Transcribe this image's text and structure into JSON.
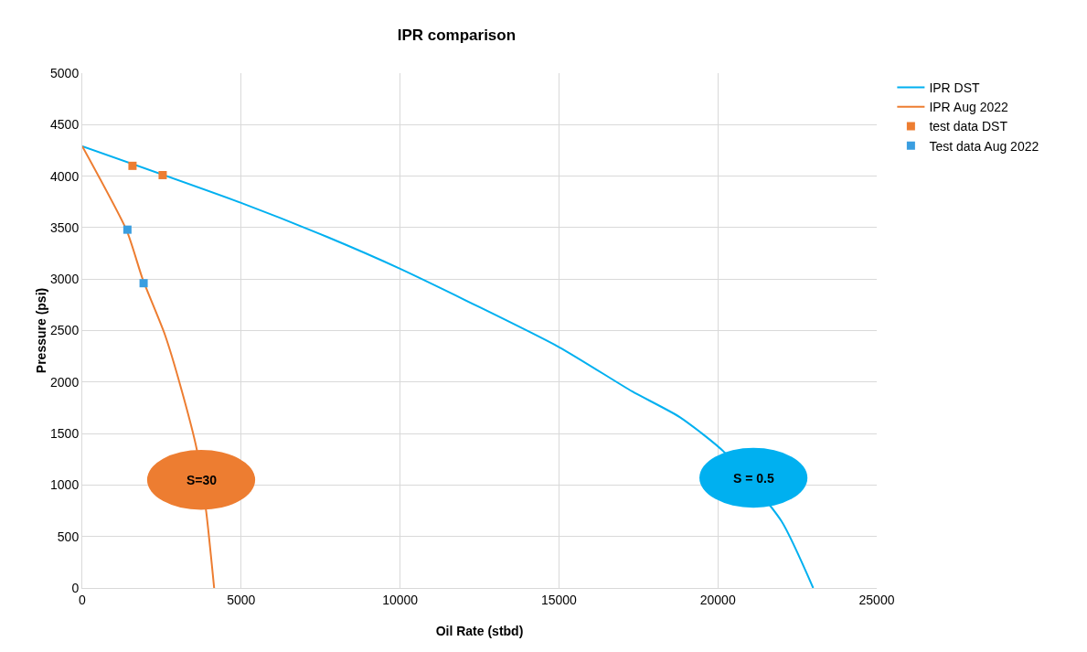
{
  "chart_data": {
    "type": "line",
    "title": "IPR comparison",
    "xlabel": "Oil Rate (stbd)",
    "ylabel": "Pressure (psi)",
    "xlim": [
      0,
      25000
    ],
    "xticks": [
      0,
      5000,
      10000,
      15000,
      20000,
      25000
    ],
    "ylim": [
      0,
      5000
    ],
    "yticks": [
      0,
      500,
      1000,
      1500,
      2000,
      2500,
      3000,
      3500,
      4000,
      4500,
      5000
    ],
    "grid": true,
    "legend": "top right",
    "series": [
      {
        "name": "IPR DST",
        "color": "#00b0f0",
        "marker": "none",
        "x": [
          0,
          5000,
          7700,
          10000,
          15000,
          17300,
          18800,
          20200,
          22000,
          23000
        ],
        "values": [
          4290,
          3740,
          3410,
          3100,
          2340,
          1910,
          1660,
          1320,
          650,
          0
        ]
      },
      {
        "name": "IPR Aug 2022",
        "color": "#ed7d31",
        "marker": "none",
        "x": [
          0,
          1400,
          1900,
          2600,
          3100,
          3600,
          3900,
          4150
        ],
        "values": [
          4290,
          3470,
          3000,
          2460,
          1950,
          1350,
          740,
          0
        ]
      },
      {
        "name": "test data DST",
        "type": "scatter",
        "color": "#ed7d31",
        "marker": "square",
        "x": [
          1580,
          2530
        ],
        "values": [
          4100,
          4010
        ]
      },
      {
        "name": "Test data Aug 2022",
        "type": "scatter",
        "color": "#3a9ee0",
        "marker": "square",
        "x": [
          1420,
          1930
        ],
        "values": [
          3480,
          2960
        ]
      }
    ],
    "annotations": [
      {
        "text": "S=30",
        "x": 3740,
        "y": 1050
      },
      {
        "text": "S = 0.5",
        "x": 21120,
        "y": 1070
      }
    ]
  }
}
